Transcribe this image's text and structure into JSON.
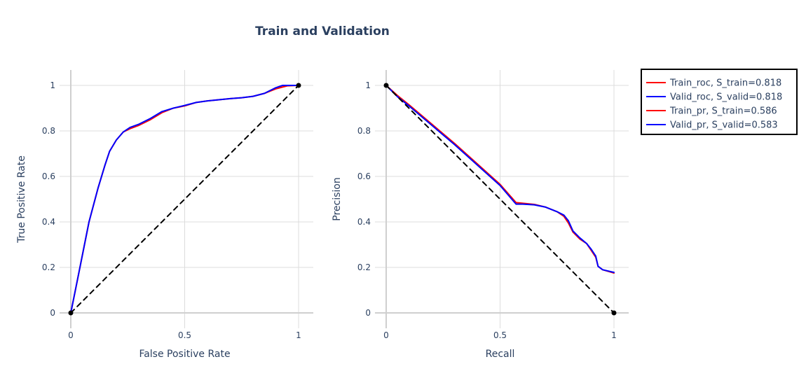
{
  "title": "Train and Validation",
  "colors": {
    "train": "#ff0000",
    "valid": "#0000ff",
    "baseline": "#000000"
  },
  "legend": {
    "placement": "top-right",
    "entries": [
      {
        "label": "Train_roc,   S_train=0.818",
        "color": "#ff0000"
      },
      {
        "label": "Valid_roc,   S_valid=0.818",
        "color": "#0000ff"
      },
      {
        "label": "Train_pr,   S_train=0.586",
        "color": "#ff0000"
      },
      {
        "label": "Valid_pr,   S_valid=0.583",
        "color": "#0000ff"
      }
    ]
  },
  "chart_data": [
    {
      "type": "line",
      "xlabel": "False Positive Rate",
      "ylabel": "True Positive Rate",
      "xlim": [
        0,
        1
      ],
      "ylim": [
        0,
        1
      ],
      "xticks": [
        {
          "value": 0,
          "label": "0"
        },
        {
          "value": 0.5,
          "label": "0.5"
        },
        {
          "value": 1,
          "label": "1"
        }
      ],
      "yticks": [
        {
          "value": 0,
          "label": "0"
        },
        {
          "value": 0.2,
          "label": "0.2"
        },
        {
          "value": 0.4,
          "label": "0.4"
        },
        {
          "value": 0.6,
          "label": "0.6"
        },
        {
          "value": 0.8,
          "label": "0.8"
        },
        {
          "value": 1,
          "label": "1"
        }
      ],
      "grid": true,
      "series": [
        {
          "color": "#ff0000",
          "dash": false,
          "x": [
            0,
            0.03,
            0.08,
            0.12,
            0.15,
            0.17,
            0.2,
            0.23,
            0.26,
            0.3,
            0.35,
            0.4,
            0.45,
            0.5,
            0.55,
            0.6,
            0.65,
            0.7,
            0.75,
            0.8,
            0.85,
            0.9,
            0.95,
            1.0
          ],
          "y": [
            0,
            0.15,
            0.4,
            0.55,
            0.65,
            0.71,
            0.76,
            0.795,
            0.81,
            0.825,
            0.85,
            0.88,
            0.9,
            0.91,
            0.925,
            0.932,
            0.937,
            0.942,
            0.946,
            0.952,
            0.965,
            0.985,
            0.998,
            1.0
          ]
        },
        {
          "color": "#0000ff",
          "dash": false,
          "x": [
            0,
            0.03,
            0.08,
            0.12,
            0.15,
            0.17,
            0.2,
            0.23,
            0.26,
            0.3,
            0.35,
            0.4,
            0.45,
            0.5,
            0.55,
            0.6,
            0.65,
            0.7,
            0.75,
            0.8,
            0.85,
            0.9,
            0.93,
            0.96,
            1.0
          ],
          "y": [
            0,
            0.15,
            0.4,
            0.55,
            0.65,
            0.71,
            0.76,
            0.795,
            0.815,
            0.83,
            0.855,
            0.885,
            0.9,
            0.912,
            0.925,
            0.932,
            0.937,
            0.942,
            0.946,
            0.952,
            0.965,
            0.99,
            1.0,
            1.0,
            1.0
          ]
        },
        {
          "color": "#000000",
          "dash": true,
          "markers": true,
          "x": [
            0,
            1
          ],
          "y": [
            0,
            1
          ]
        }
      ]
    },
    {
      "type": "line",
      "xlabel": "Recall",
      "ylabel": "Precision",
      "xlim": [
        0,
        1
      ],
      "ylim": [
        0,
        1
      ],
      "xticks": [
        {
          "value": 0,
          "label": "0"
        },
        {
          "value": 0.5,
          "label": "0.5"
        },
        {
          "value": 1,
          "label": "1"
        }
      ],
      "yticks": [
        {
          "value": 0,
          "label": "0"
        },
        {
          "value": 0.2,
          "label": "0.2"
        },
        {
          "value": 0.4,
          "label": "0.4"
        },
        {
          "value": 0.6,
          "label": "0.6"
        },
        {
          "value": 0.8,
          "label": "0.8"
        },
        {
          "value": 1,
          "label": "1"
        }
      ],
      "grid": true,
      "series": [
        {
          "color": "#ff0000",
          "dash": false,
          "x": [
            0,
            0.05,
            0.1,
            0.2,
            0.3,
            0.4,
            0.5,
            0.57,
            0.6,
            0.65,
            0.7,
            0.75,
            0.78,
            0.8,
            0.82,
            0.85,
            0.88,
            0.9,
            0.92,
            0.93,
            0.95,
            1.0
          ],
          "y": [
            1.0,
            0.955,
            0.915,
            0.83,
            0.745,
            0.655,
            0.565,
            0.485,
            0.482,
            0.477,
            0.465,
            0.445,
            0.425,
            0.395,
            0.355,
            0.325,
            0.305,
            0.275,
            0.245,
            0.205,
            0.19,
            0.175
          ]
        },
        {
          "color": "#0000ff",
          "dash": false,
          "x": [
            0,
            0.05,
            0.1,
            0.2,
            0.3,
            0.4,
            0.5,
            0.57,
            0.6,
            0.65,
            0.7,
            0.75,
            0.78,
            0.8,
            0.82,
            0.85,
            0.88,
            0.9,
            0.92,
            0.93,
            0.95,
            1.0
          ],
          "y": [
            1.0,
            0.95,
            0.91,
            0.825,
            0.74,
            0.65,
            0.56,
            0.478,
            0.478,
            0.475,
            0.465,
            0.445,
            0.43,
            0.405,
            0.36,
            0.33,
            0.305,
            0.28,
            0.25,
            0.205,
            0.19,
            0.178
          ]
        },
        {
          "color": "#000000",
          "dash": true,
          "markers": true,
          "x": [
            0,
            1
          ],
          "y": [
            1,
            0
          ]
        }
      ]
    }
  ]
}
